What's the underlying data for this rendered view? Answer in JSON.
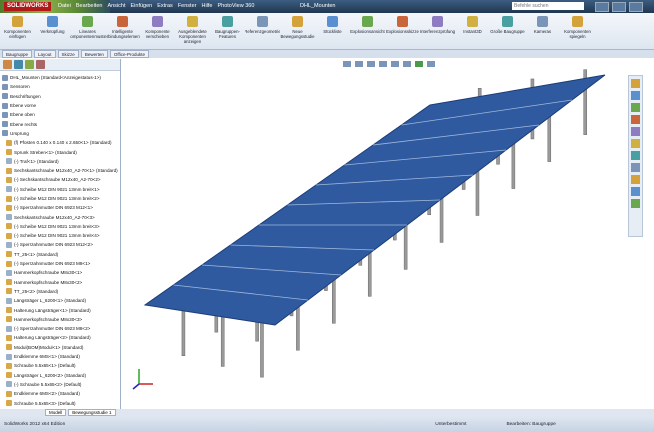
{
  "app": {
    "name": "SOLIDWORKS",
    "document": "DHL_Mounten",
    "search": "Befehle suchen"
  },
  "menu": [
    "Datei",
    "Bearbeiten",
    "Ansicht",
    "Einfügen",
    "Extras",
    "Fenster",
    "Hilfe",
    "PhotoView 360"
  ],
  "toolbar": [
    "Komponenten einfügen",
    "Verknüpfung",
    "Lineares Komponentenmuster",
    "Intelligente Verbindungselemente",
    "Komponente verschieben",
    "Ausgeblendete Komponenten anzeigen",
    "Baugruppen-Features",
    "Referenzgeometrie",
    "Neue Bewegungsstudie",
    "Stückliste",
    "Explosionsansicht",
    "Explosionsskizze",
    "Interferenzprüfung",
    "Instant3D",
    "Große Baugruppe",
    "Kameras",
    "Komponenten spiegeln"
  ],
  "command_tabs": [
    "Baugruppe",
    "Layout",
    "Skizze",
    "Bewerten",
    "Office-Produkte"
  ],
  "tree": [
    "DHL_Mounten (Standard<Anzeigestatus-1>)",
    "Sensoren",
    "Beschriftungen",
    "Ebene vorne",
    "Ebene oben",
    "Ebene rechts",
    "Ursprung",
    "(f) Pfosten 0.140 x 0.140 x 2.650<1> (Standard)",
    "Sprunk Streben<1> (Standard)",
    "(-) Traf<1> (Standard)",
    "Sechskantschraube M12x40_A2-70<1> (Standard)",
    "(-) Sechskantschraube M12x40_A2-70<2>",
    "(-) Scheibe M12 DIN 9021 13mm breit<1>",
    "(-) Scheibe M12 DIN 9021 13mm breit<2>",
    "(-) Sperrzahnmutter DIN 6923 M12<1>",
    "Sechskantschraube M12x40_A2-70<3>",
    "(-) Scheibe M12 DIN 9021 13mm breit<3>",
    "(-) Scheibe M12 DIN 9021 13mm breit<4>",
    "(-) Sperrzahnmutter DIN 6923 M12<2>",
    "TT_25<1> (Standard)",
    "(-) Sperrzahnmutter DIN 6923 M8<1>",
    "Hammerkopfschraube M8x30<1>",
    "Hammerkopfschraube M8x30<2>",
    "TT_25<2> (Standard)",
    "Längsträger L_6200<1> (Standard)",
    "Halterung Längsträger<1> (Standard)",
    "Hammerkopfschraube M8x30<3>",
    "(-) Sperrzahnmutter DIN 6923 M8<2>",
    "Halterung Längsträger<2> (Standard)",
    "Modul(BOM)Modul<1> (Standard)",
    "Endklemme 6MS<1> (Standard)",
    "Schraube 5.5x65<1> (Default)",
    "Längsträger L_6200<2> (Standard)",
    "(-) Schraube 5.5x65<2> (Default)",
    "Endklemme 6MS<2> (Standard)",
    "Schraube 5.5x65<3> (Default)"
  ],
  "bottom_tabs": [
    "Modell",
    "Bewegungsstudie 1"
  ],
  "status": {
    "edition": "SolidWorks 2012 x64 Edition",
    "state": "Unterbestimmt",
    "mode": "Bearbeiten: Baugruppe"
  }
}
